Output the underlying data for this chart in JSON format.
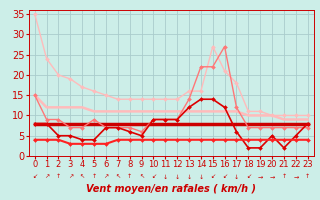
{
  "title": "",
  "xlabel": "Vent moyen/en rafales ( km/h )",
  "ylabel": "",
  "bg_color": "#cceee8",
  "grid_color": "#aacccc",
  "xlim": [
    -0.5,
    23.5
  ],
  "ylim": [
    0,
    36
  ],
  "yticks": [
    0,
    5,
    10,
    15,
    20,
    25,
    30,
    35
  ],
  "xticks": [
    0,
    1,
    2,
    3,
    4,
    5,
    6,
    7,
    8,
    9,
    10,
    11,
    12,
    13,
    14,
    15,
    16,
    17,
    18,
    19,
    20,
    21,
    22,
    23
  ],
  "series": [
    {
      "label": "s1_light_diagonal",
      "color": "#ffbbbb",
      "lw": 1.0,
      "marker": "D",
      "ms": 2.0,
      "data_x": [
        0,
        1,
        2,
        3,
        4,
        5,
        6,
        7,
        8,
        9,
        10,
        11,
        12,
        13,
        14,
        15,
        16,
        17,
        18,
        19,
        20,
        21,
        22,
        23
      ],
      "data_y": [
        35,
        24,
        20,
        19,
        17,
        16,
        15,
        14,
        14,
        14,
        14,
        14,
        14,
        16,
        16,
        27,
        21,
        18,
        11,
        11,
        10,
        10,
        10,
        10
      ]
    },
    {
      "label": "s2_flat_light",
      "color": "#ffbbbb",
      "lw": 1.8,
      "marker": null,
      "ms": 0,
      "data_x": [
        0,
        1,
        2,
        3,
        4,
        5,
        6,
        7,
        8,
        9,
        10,
        11,
        12,
        13,
        14,
        15,
        16,
        17,
        18,
        19,
        20,
        21,
        22,
        23
      ],
      "data_y": [
        15,
        12,
        12,
        12,
        12,
        11,
        11,
        11,
        11,
        11,
        11,
        11,
        11,
        11,
        11,
        11,
        11,
        11,
        10,
        10,
        10,
        9,
        9,
        9
      ]
    },
    {
      "label": "s3_medium",
      "color": "#ff7777",
      "lw": 1.0,
      "marker": "D",
      "ms": 2.0,
      "data_x": [
        0,
        1,
        2,
        3,
        4,
        5,
        6,
        7,
        8,
        9,
        10,
        11,
        12,
        13,
        14,
        15,
        16,
        17,
        18,
        19,
        20,
        21,
        22,
        23
      ],
      "data_y": [
        15,
        9,
        9,
        7,
        7,
        9,
        7,
        7,
        7,
        6,
        9,
        9,
        9,
        14,
        22,
        22,
        27,
        12,
        7,
        7,
        7,
        7,
        7,
        7
      ]
    },
    {
      "label": "s4_thick_flat",
      "color": "#cc0000",
      "lw": 2.5,
      "marker": null,
      "ms": 0,
      "data_x": [
        0,
        1,
        2,
        3,
        4,
        5,
        6,
        7,
        8,
        9,
        10,
        11,
        12,
        13,
        14,
        15,
        16,
        17,
        18,
        19,
        20,
        21,
        22,
        23
      ],
      "data_y": [
        8,
        8,
        8,
        8,
        8,
        8,
        8,
        8,
        8,
        8,
        8,
        8,
        8,
        8,
        8,
        8,
        8,
        8,
        8,
        8,
        8,
        8,
        8,
        8
      ]
    },
    {
      "label": "s5_dark_markers",
      "color": "#dd0000",
      "lw": 1.2,
      "marker": "D",
      "ms": 2.0,
      "data_x": [
        0,
        1,
        2,
        3,
        4,
        5,
        6,
        7,
        8,
        9,
        10,
        11,
        12,
        13,
        14,
        15,
        16,
        17,
        18,
        19,
        20,
        21,
        22,
        23
      ],
      "data_y": [
        8,
        8,
        5,
        5,
        4,
        4,
        7,
        7,
        6,
        5,
        9,
        9,
        9,
        12,
        14,
        14,
        12,
        6,
        2,
        2,
        5,
        2,
        5,
        8
      ]
    },
    {
      "label": "s6_bottom",
      "color": "#ff2222",
      "lw": 1.5,
      "marker": "D",
      "ms": 2.0,
      "data_x": [
        0,
        1,
        2,
        3,
        4,
        5,
        6,
        7,
        8,
        9,
        10,
        11,
        12,
        13,
        14,
        15,
        16,
        17,
        18,
        19,
        20,
        21,
        22,
        23
      ],
      "data_y": [
        4,
        4,
        4,
        3,
        3,
        3,
        3,
        4,
        4,
        4,
        4,
        4,
        4,
        4,
        4,
        4,
        4,
        4,
        4,
        4,
        4,
        4,
        4,
        4
      ]
    }
  ],
  "arrows": [
    "↙",
    "↗",
    "↑",
    "↗",
    "↖",
    "↑",
    "↗",
    "↖",
    "↑",
    "↖",
    "↙",
    "↓",
    "↓",
    "↓",
    "↓",
    "↙",
    "↙",
    "↓",
    "↙",
    "→",
    "→",
    "↑",
    "→",
    "↑"
  ],
  "arrow_color": "#cc0000",
  "xlabel_color": "#cc0000",
  "xlabel_fontsize": 7,
  "tick_color": "#cc0000",
  "tick_fontsize": 6,
  "ytick_fontsize": 7
}
